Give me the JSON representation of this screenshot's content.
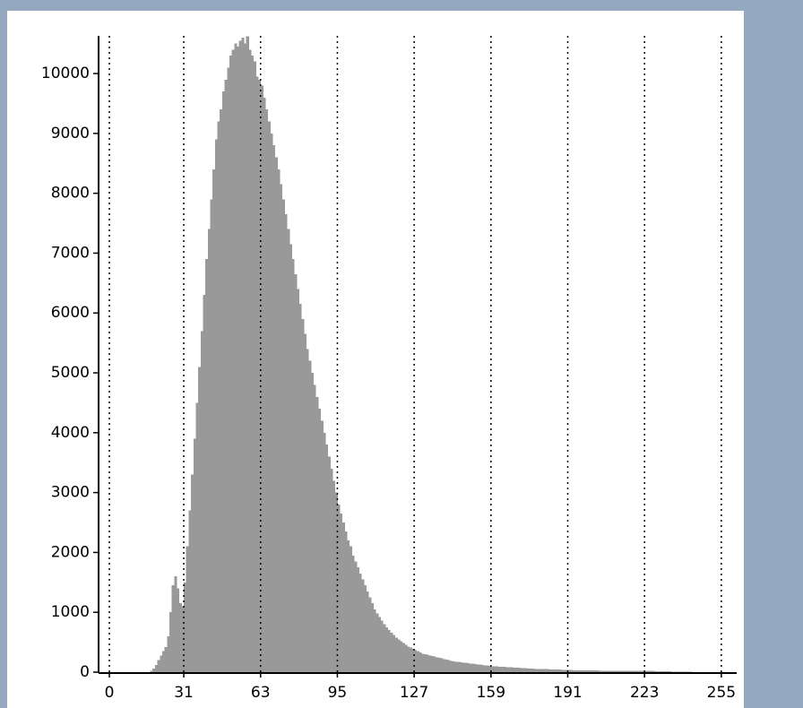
{
  "chart_data": {
    "type": "histogram",
    "bins": [
      0,
      1,
      2,
      3,
      4,
      5,
      6,
      7,
      8,
      9,
      10,
      11,
      12,
      13,
      14,
      15,
      16,
      17,
      18,
      19,
      20,
      21,
      22,
      23,
      24,
      25,
      26,
      27,
      28,
      29,
      30,
      31,
      32,
      33,
      34,
      35,
      36,
      37,
      38,
      39,
      40,
      41,
      42,
      43,
      44,
      45,
      46,
      47,
      48,
      49,
      50,
      51,
      52,
      53,
      54,
      55,
      56,
      57,
      58,
      59,
      60,
      61,
      62,
      63,
      64,
      65,
      66,
      67,
      68,
      69,
      70,
      71,
      72,
      73,
      74,
      75,
      76,
      77,
      78,
      79,
      80,
      81,
      82,
      83,
      84,
      85,
      86,
      87,
      88,
      89,
      90,
      91,
      92,
      93,
      94,
      95,
      96,
      97,
      98,
      99,
      100,
      101,
      102,
      103,
      104,
      105,
      106,
      107,
      108,
      109,
      110,
      111,
      112,
      113,
      114,
      115,
      116,
      117,
      118,
      119,
      120,
      121,
      122,
      123,
      124,
      125,
      126,
      127,
      128,
      129,
      130,
      131,
      132,
      133,
      134,
      135,
      136,
      137,
      138,
      139,
      140,
      141,
      142,
      143,
      144,
      145,
      146,
      147,
      148,
      149,
      150,
      151,
      152,
      153,
      154,
      155,
      156,
      157,
      158,
      159,
      160,
      161,
      162,
      163,
      164,
      165,
      166,
      167,
      168,
      169,
      170,
      171,
      172,
      173,
      174,
      175,
      176,
      177,
      178,
      179,
      180,
      181,
      182,
      183,
      184,
      185,
      186,
      187,
      188,
      189,
      190,
      191,
      192,
      193,
      194,
      195,
      196,
      197,
      198,
      199,
      200,
      201,
      202,
      203,
      204,
      205,
      206,
      207,
      208,
      209,
      210,
      211,
      212,
      213,
      214,
      215,
      216,
      217,
      218,
      219,
      220,
      221,
      222,
      223,
      224,
      225,
      226,
      227,
      228,
      229,
      230,
      231,
      232,
      233,
      234,
      235,
      236,
      237,
      238,
      239,
      240,
      241,
      242,
      243,
      244,
      245,
      246,
      247,
      248,
      249,
      250,
      251,
      252,
      253,
      254,
      255,
      256
    ],
    "counts": [
      0,
      0,
      0,
      0,
      0,
      0,
      0,
      0,
      0,
      0,
      0,
      0,
      0,
      0,
      0,
      0,
      0,
      20,
      60,
      120,
      200,
      280,
      350,
      420,
      600,
      1000,
      1450,
      1600,
      1400,
      1150,
      1100,
      1500,
      2100,
      2700,
      3300,
      3900,
      4500,
      5100,
      5700,
      6300,
      6900,
      7400,
      7900,
      8400,
      8900,
      9200,
      9400,
      9700,
      9900,
      10100,
      10300,
      10400,
      10500,
      10450,
      10550,
      10600,
      10500,
      10620,
      10400,
      10300,
      10200,
      9950,
      9900,
      9800,
      9600,
      9400,
      9200,
      9000,
      8800,
      8600,
      8400,
      8150,
      7900,
      7650,
      7400,
      7150,
      6900,
      6650,
      6400,
      6150,
      5900,
      5650,
      5400,
      5200,
      5000,
      4800,
      4600,
      4400,
      4200,
      4000,
      3800,
      3600,
      3400,
      3200,
      3000,
      2800,
      2650,
      2500,
      2350,
      2200,
      2100,
      1950,
      1850,
      1750,
      1650,
      1550,
      1450,
      1350,
      1250,
      1150,
      1050,
      980,
      920,
      860,
      800,
      750,
      700,
      660,
      620,
      580,
      550,
      520,
      490,
      460,
      430,
      410,
      390,
      370,
      350,
      330,
      310,
      300,
      290,
      280,
      270,
      260,
      250,
      240,
      230,
      220,
      210,
      200,
      190,
      180,
      175,
      170,
      165,
      160,
      155,
      150,
      145,
      140,
      135,
      130,
      125,
      120,
      115,
      110,
      105,
      100,
      98,
      95,
      92,
      90,
      88,
      85,
      82,
      80,
      78,
      75,
      72,
      70,
      68,
      65,
      62,
      60,
      58,
      56,
      55,
      54,
      52,
      50,
      49,
      48,
      46,
      45,
      44,
      42,
      40,
      38,
      36,
      35,
      34,
      33,
      32,
      31,
      30,
      30,
      29,
      29,
      28,
      28,
      27,
      27,
      26,
      26,
      25,
      25,
      25,
      24,
      24,
      23,
      23,
      23,
      22,
      22,
      22,
      21,
      21,
      21,
      20,
      20,
      20,
      20,
      20,
      19,
      19,
      18,
      18,
      17,
      16,
      15,
      14,
      12,
      10,
      9,
      8,
      7,
      6,
      5,
      5,
      4,
      4,
      3,
      3,
      2,
      2,
      1,
      1,
      0,
      0,
      0,
      0,
      0,
      0,
      0
    ],
    "color": "#999999",
    "xlim": [
      -4.5,
      261.4
    ],
    "ylim": [
      0,
      10630
    ],
    "xticks": [
      0,
      31,
      63,
      95,
      127,
      159,
      191,
      223,
      255
    ],
    "yticks": [
      0,
      1000,
      2000,
      3000,
      4000,
      5000,
      6000,
      7000,
      8000,
      9000,
      10000
    ],
    "grid": true
  }
}
